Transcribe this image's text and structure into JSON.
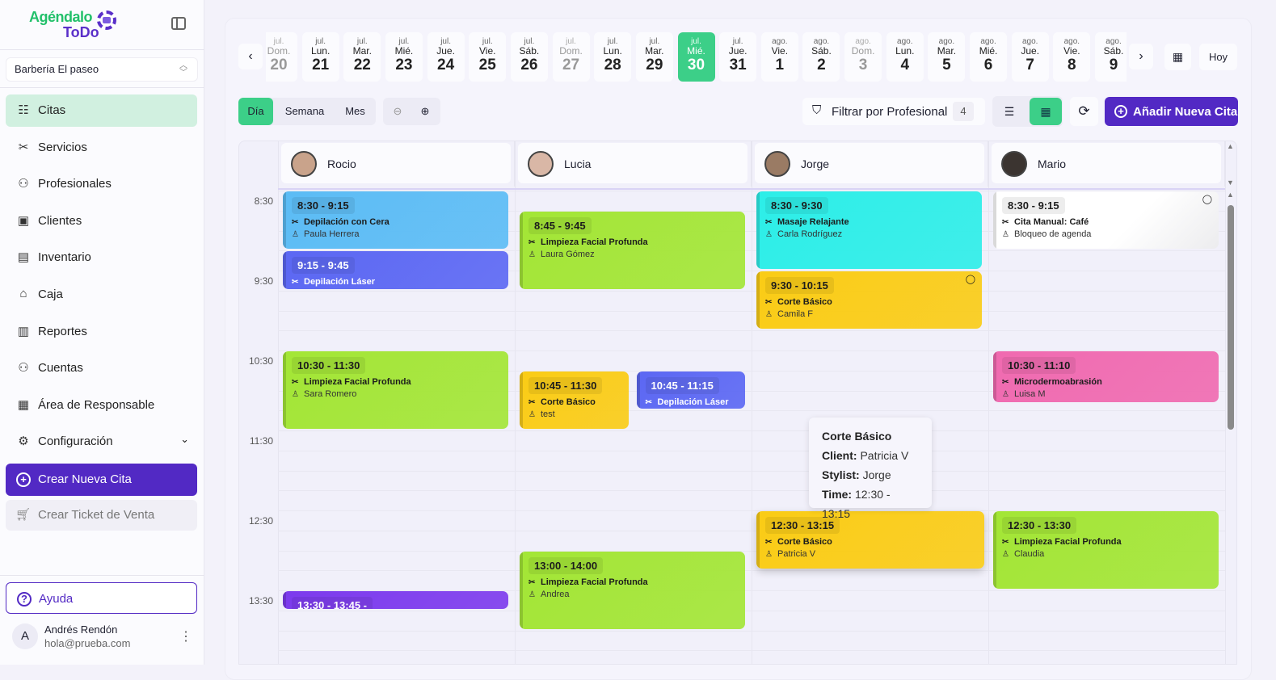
{
  "brand": {
    "line1": "Agéndalo",
    "line2": "ToDo"
  },
  "sidebar": {
    "branch": "Barbería El paseo",
    "items": [
      {
        "label": "Citas",
        "icon": "list-check-icon",
        "glyph": "☷",
        "active": true
      },
      {
        "label": "Servicios",
        "icon": "scissors-icon",
        "glyph": "✂"
      },
      {
        "label": "Profesionales",
        "icon": "users-icon",
        "glyph": "⚇"
      },
      {
        "label": "Clientes",
        "icon": "contact-icon",
        "glyph": "▣"
      },
      {
        "label": "Inventario",
        "icon": "warehouse-icon",
        "glyph": "▤"
      },
      {
        "label": "Caja",
        "icon": "bank-icon",
        "glyph": "⌂"
      },
      {
        "label": "Reportes",
        "icon": "bar-chart-icon",
        "glyph": "▥"
      },
      {
        "label": "Cuentas",
        "icon": "users-icon",
        "glyph": "⚇"
      },
      {
        "label": "Área de Responsable",
        "icon": "briefcase-icon",
        "glyph": "▦"
      },
      {
        "label": "Configuración",
        "icon": "gear-icon",
        "glyph": "⚙"
      }
    ],
    "create": "Crear Nueva Cita",
    "ticket": "Crear Ticket de Venta",
    "help": "Ayuda",
    "user": {
      "initial": "A",
      "name": "Andrés Rendón",
      "email": "hola@prueba.com"
    }
  },
  "dates": [
    {
      "m": "jul.",
      "w": "Dom.",
      "n": "20",
      "weekend": true
    },
    {
      "m": "jul.",
      "w": "Lun.",
      "n": "21"
    },
    {
      "m": "jul.",
      "w": "Mar.",
      "n": "22"
    },
    {
      "m": "jul.",
      "w": "Mié.",
      "n": "23"
    },
    {
      "m": "jul.",
      "w": "Jue.",
      "n": "24"
    },
    {
      "m": "jul.",
      "w": "Vie.",
      "n": "25"
    },
    {
      "m": "jul.",
      "w": "Sáb.",
      "n": "26"
    },
    {
      "m": "jul.",
      "w": "Dom.",
      "n": "27",
      "weekend": true
    },
    {
      "m": "jul.",
      "w": "Lun.",
      "n": "28"
    },
    {
      "m": "jul.",
      "w": "Mar.",
      "n": "29"
    },
    {
      "m": "jul.",
      "w": "Mié.",
      "n": "30",
      "selected": true
    },
    {
      "m": "jul.",
      "w": "Jue.",
      "n": "31"
    },
    {
      "m": "ago.",
      "w": "Vie.",
      "n": "1"
    },
    {
      "m": "ago.",
      "w": "Sáb.",
      "n": "2"
    },
    {
      "m": "ago.",
      "w": "Dom.",
      "n": "3",
      "weekend": true
    },
    {
      "m": "ago.",
      "w": "Lun.",
      "n": "4"
    },
    {
      "m": "ago.",
      "w": "Mar.",
      "n": "5"
    },
    {
      "m": "ago.",
      "w": "Mié.",
      "n": "6"
    },
    {
      "m": "ago.",
      "w": "Jue.",
      "n": "7"
    },
    {
      "m": "ago.",
      "w": "Vie.",
      "n": "8"
    },
    {
      "m": "ago.",
      "w": "Sáb.",
      "n": "9"
    }
  ],
  "toolbar": {
    "today": "Hoy",
    "views": [
      "Día",
      "Semana",
      "Mes"
    ],
    "active_view": "Día",
    "filter": "Filtrar por Profesional",
    "filter_count": "4",
    "add": "Añadir Nueva Cita"
  },
  "colors": {
    "accent": "#5229c4",
    "green": "#3ccf88"
  },
  "professionals": [
    "Rocio",
    "Lucia",
    "Jorge",
    "Mario"
  ],
  "time_labels": [
    "8:30",
    "9:30",
    "10:30",
    "11:30",
    "12:30",
    "13:30"
  ],
  "events": [
    {
      "pro": "Rocio",
      "time": "8:30 - 9:15",
      "start": "8:30",
      "end": "9:15",
      "service": "Depilación con Cera",
      "client": "Paula Herrera",
      "color": "#5bbcf5"
    },
    {
      "pro": "Rocio",
      "time": "9:15 - 9:45",
      "start": "9:15",
      "end": "9:45",
      "service": "Depilación Láser",
      "client": "",
      "color": "#5b67f3",
      "dark": true
    },
    {
      "pro": "Rocio",
      "time": "10:30 - 11:30",
      "start": "10:30",
      "end": "11:30",
      "service": "Limpieza Facial Profunda",
      "client": "Sara Romero",
      "color": "#a3e635"
    },
    {
      "pro": "Rocio",
      "time": "13:30 - 13:45 -",
      "start": "13:30",
      "end": "13:45",
      "service": "",
      "client": "",
      "color": "#7c3aed",
      "dark": true
    },
    {
      "pro": "Lucia",
      "time": "8:45 - 9:45",
      "start": "8:45",
      "end": "9:45",
      "service": "Limpieza Facial Profunda",
      "client": "Laura Gómez",
      "color": "#a3e635"
    },
    {
      "pro": "Lucia",
      "time": "10:45 - 11:30",
      "start": "10:45",
      "end": "11:30",
      "service": "Corte Básico",
      "client": "test",
      "color": "#facc15"
    },
    {
      "pro": "Lucia",
      "time": "10:45 - 11:15",
      "start": "10:45",
      "end": "11:15",
      "service": "Depilación Láser",
      "client": "",
      "color": "#5b67f3",
      "dark": true
    },
    {
      "pro": "Lucia",
      "time": "13:00 - 14:00",
      "start": "13:00",
      "end": "14:00",
      "service": "Limpieza Facial Profunda",
      "client": "Andrea",
      "color": "#a3e635"
    },
    {
      "pro": "Jorge",
      "time": "8:30 - 9:30",
      "start": "8:30",
      "end": "9:30",
      "service": "Masaje Relajante",
      "client": "Carla Rodríguez",
      "color": "#2ceee8"
    },
    {
      "pro": "Jorge",
      "time": "9:30 - 10:15",
      "start": "9:30",
      "end": "10:15",
      "service": "Corte Básico",
      "client": "Camila F",
      "color": "#facc15",
      "comment": true
    },
    {
      "pro": "Jorge",
      "time": "12:30 - 13:15",
      "start": "12:30",
      "end": "13:15",
      "service": "Corte Básico",
      "client": "Patricia V",
      "color": "#facc15",
      "hovered": true
    },
    {
      "pro": "Mario",
      "time": "8:30 - 9:15",
      "start": "8:30",
      "end": "9:15",
      "service": "Cita Manual: Café",
      "client": "Bloqueo de agenda",
      "color": "#ffffff",
      "comment": true
    },
    {
      "pro": "Mario",
      "time": "10:30 - 11:10",
      "start": "10:30",
      "end": "11:10",
      "service": "Microdermoabrasión",
      "client": "Luisa M",
      "color": "#f06ab0"
    },
    {
      "pro": "Mario",
      "time": "12:30 - 13:30",
      "start": "12:30",
      "end": "13:30",
      "service": "Limpieza Facial Profunda",
      "client": "Claudia",
      "color": "#a3e635"
    }
  ],
  "tooltip": {
    "title": "Corte Básico",
    "client_label": "Client:",
    "client": "Patricia V",
    "stylist_label": "Stylist:",
    "stylist": "Jorge",
    "time_label": "Time:",
    "time": "12:30 - 13:15"
  }
}
